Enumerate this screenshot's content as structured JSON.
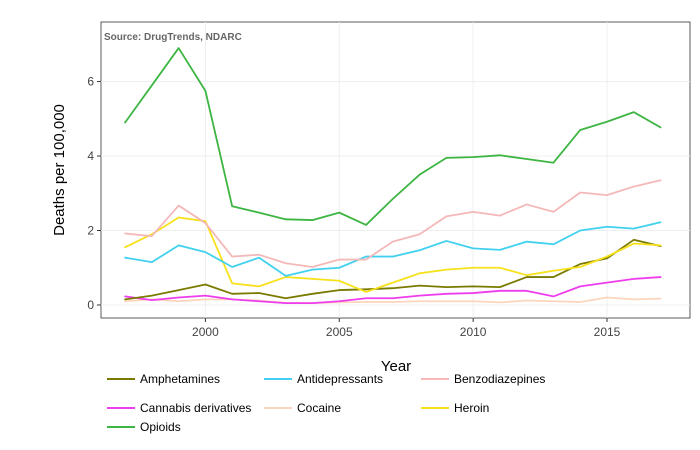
{
  "chart_data": {
    "type": "line",
    "annotation": "Source: DrugTrends, NDARC",
    "xlabel": "Year",
    "ylabel": "Deaths per 100,000",
    "xlim": [
      1996.1,
      2018.1
    ],
    "ylim": [
      -0.35,
      7.6
    ],
    "x_ticks": [
      2000,
      2005,
      2010,
      2015
    ],
    "y_ticks": [
      0,
      2,
      4,
      6
    ],
    "grid": true,
    "legend_position": "bottom",
    "x": [
      1997,
      1998,
      1999,
      2000,
      2001,
      2002,
      2003,
      2004,
      2005,
      2006,
      2007,
      2008,
      2009,
      2010,
      2011,
      2012,
      2013,
      2014,
      2015,
      2016,
      2017
    ],
    "series": [
      {
        "name": "Amphetamines",
        "color": "#7a7a00",
        "values": [
          0.15,
          0.25,
          0.4,
          0.55,
          0.3,
          0.32,
          0.18,
          0.3,
          0.4,
          0.42,
          0.45,
          0.52,
          0.48,
          0.5,
          0.48,
          0.75,
          0.75,
          1.1,
          1.25,
          1.75,
          1.58
        ]
      },
      {
        "name": "Antidepressants",
        "color": "#41d1ef",
        "values": [
          1.27,
          1.15,
          1.6,
          1.42,
          1.02,
          1.27,
          0.78,
          0.95,
          1.0,
          1.3,
          1.3,
          1.47,
          1.72,
          1.52,
          1.48,
          1.7,
          1.63,
          2.0,
          2.1,
          2.05,
          2.22
        ]
      },
      {
        "name": "Benzodiazepines",
        "color": "#f4b8b8",
        "values": [
          1.92,
          1.85,
          2.67,
          2.2,
          1.3,
          1.35,
          1.12,
          1.02,
          1.22,
          1.22,
          1.7,
          1.9,
          2.38,
          2.5,
          2.4,
          2.7,
          2.5,
          3.02,
          2.95,
          3.18,
          3.35
        ]
      },
      {
        "name": "Cannabis derivatives",
        "color": "#ee3ded",
        "values": [
          0.23,
          0.13,
          0.2,
          0.25,
          0.15,
          0.1,
          0.05,
          0.05,
          0.1,
          0.18,
          0.18,
          0.25,
          0.3,
          0.32,
          0.38,
          0.38,
          0.23,
          0.5,
          0.6,
          0.7,
          0.75
        ]
      },
      {
        "name": "Cocaine",
        "color": "#fdd5bc",
        "values": [
          0.1,
          0.15,
          0.1,
          0.15,
          0.15,
          0.12,
          0.06,
          0.05,
          0.07,
          0.08,
          0.08,
          0.1,
          0.1,
          0.1,
          0.07,
          0.12,
          0.1,
          0.08,
          0.2,
          0.15,
          0.17
        ]
      },
      {
        "name": "Heroin",
        "color": "#f7e11b",
        "values": [
          1.55,
          1.9,
          2.35,
          2.25,
          0.58,
          0.5,
          0.75,
          0.7,
          0.65,
          0.35,
          0.6,
          0.85,
          0.95,
          1.0,
          1.0,
          0.8,
          0.92,
          1.02,
          1.3,
          1.65,
          1.6
        ]
      },
      {
        "name": "Opioids",
        "color": "#3db542",
        "values": [
          4.9,
          5.9,
          6.9,
          5.75,
          2.65,
          2.48,
          2.3,
          2.28,
          2.48,
          2.15,
          2.85,
          3.5,
          3.95,
          3.97,
          4.02,
          3.92,
          3.82,
          4.7,
          4.92,
          5.18,
          4.77
        ]
      }
    ]
  }
}
